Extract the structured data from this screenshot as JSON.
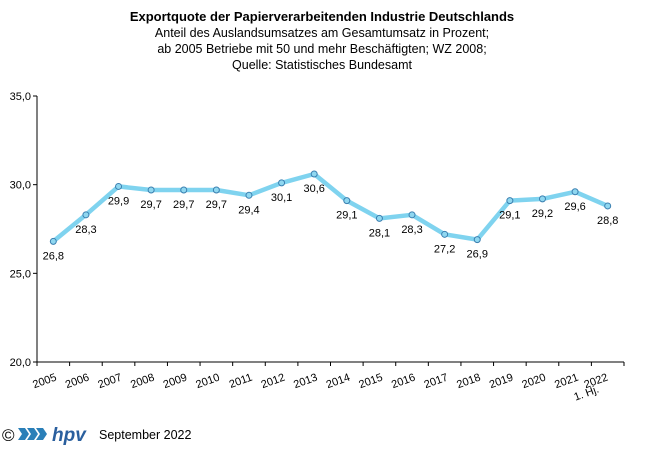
{
  "chart_data": {
    "type": "line",
    "title": "Exportquote der Papierverarbeitenden Industrie Deutschlands",
    "subtitle": [
      "Anteil des Auslandsumsatzes am Gesamtumsatz in Prozent;",
      "ab 2005 Betriebe mit 50 und mehr Beschäftigten; WZ 2008;",
      "Quelle: Statistisches Bundesamt"
    ],
    "categories": [
      "2005",
      "2006",
      "2007",
      "2008",
      "2009",
      "2010",
      "2011",
      "2012",
      "2013",
      "2014",
      "2015",
      "2016",
      "2017",
      "2018",
      "2019",
      "2020",
      "2021",
      "1. Hj. 2022"
    ],
    "values": [
      26.8,
      28.3,
      29.9,
      29.7,
      29.7,
      29.7,
      29.4,
      30.1,
      30.6,
      29.1,
      28.1,
      28.3,
      27.2,
      26.9,
      29.1,
      29.2,
      29.6,
      28.8
    ],
    "value_labels": [
      "26,8",
      "28,3",
      "29,9",
      "29,7",
      "29,7",
      "29,7",
      "29,4",
      "30,1",
      "30,6",
      "29,1",
      "28,1",
      "28,3",
      "27,2",
      "26,9",
      "29,1",
      "29,2",
      "29,6",
      "28,8"
    ],
    "yticks": [
      20,
      25,
      30,
      35
    ],
    "ytick_labels": [
      "20,0",
      "25,0",
      "30,0",
      "35,0"
    ],
    "ylim": [
      20,
      35
    ],
    "xlabel": "",
    "ylabel": "",
    "grid": false,
    "line_color": "#7fd3ef",
    "marker_color": "#8fd7f0",
    "marker_edge_color": "#3a7fb0"
  },
  "footer": {
    "copyright_symbol": "©",
    "logo_text": "hpv",
    "date": "September 2022"
  }
}
